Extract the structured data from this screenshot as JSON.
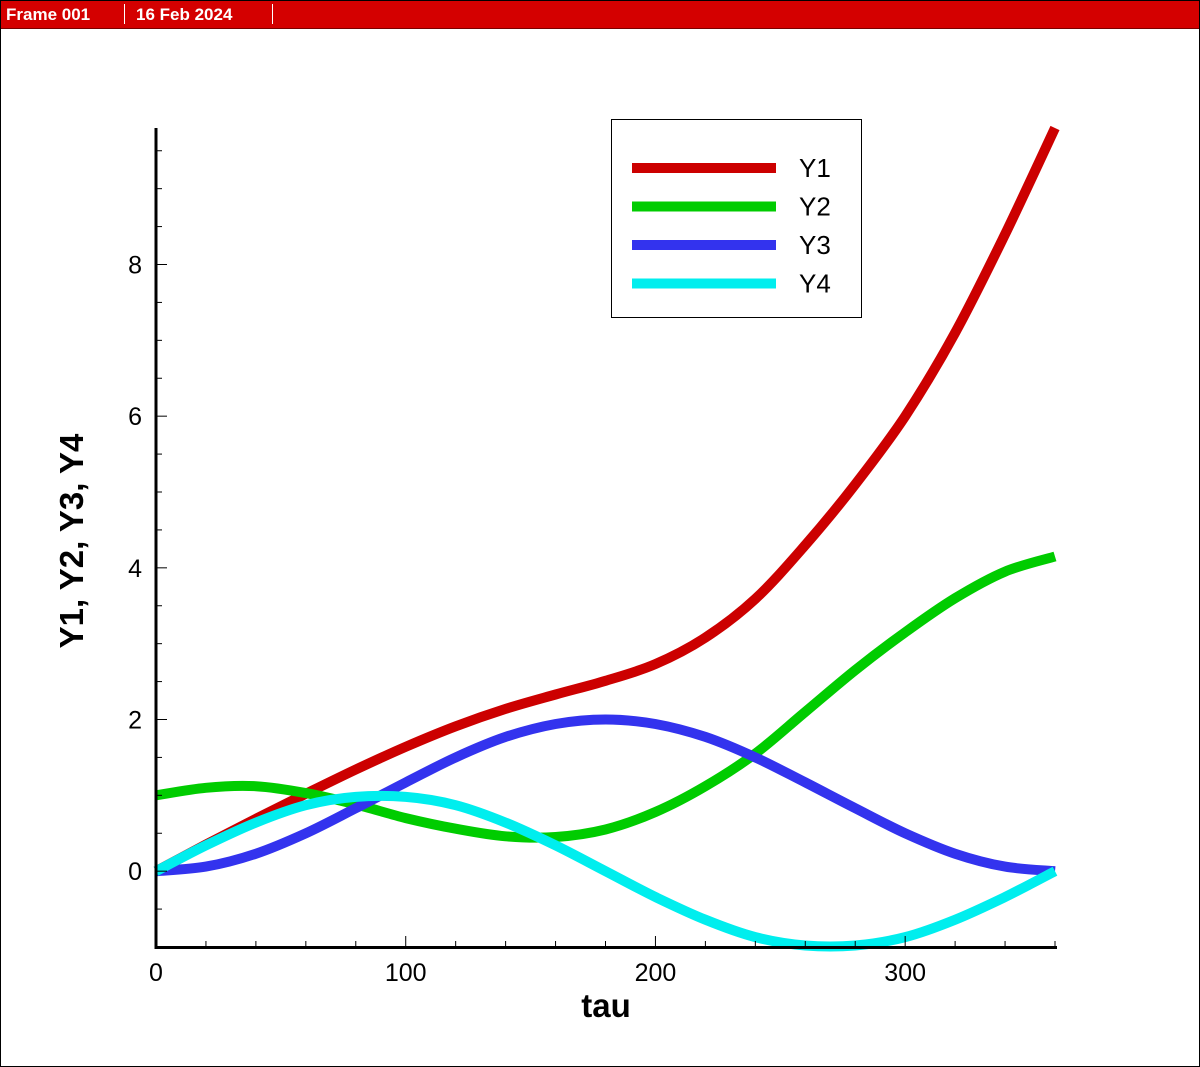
{
  "header": {
    "frame_label": "Frame 001",
    "date_label": "16 Feb 2024",
    "bar_color": "#d40000"
  },
  "chart_data": {
    "type": "line",
    "title": "",
    "xlabel": "tau",
    "ylabel": "Y1, Y2, Y3, Y4",
    "xlim": [
      0,
      360
    ],
    "ylim": [
      -1,
      9.8
    ],
    "x_ticks": [
      0,
      100,
      200,
      300
    ],
    "x_tick_labels": [
      "0",
      "100",
      "200",
      "300"
    ],
    "y_ticks": [
      0,
      2,
      4,
      6,
      8
    ],
    "y_tick_labels": [
      "0",
      "2",
      "4",
      "6",
      "8"
    ],
    "grid": false,
    "legend_position": "top-right",
    "x": [
      0,
      20,
      40,
      60,
      80,
      100,
      120,
      140,
      160,
      180,
      200,
      220,
      240,
      260,
      280,
      300,
      320,
      340,
      360
    ],
    "series": [
      {
        "name": "Y1",
        "color": "#cc0000",
        "values": [
          0,
          0.35,
          0.69,
          1.02,
          1.34,
          1.64,
          1.91,
          2.14,
          2.33,
          2.51,
          2.73,
          3.08,
          3.59,
          4.3,
          5.1,
          6.0,
          7.1,
          8.4,
          9.8
        ]
      },
      {
        "name": "Y2",
        "color": "#00cc00",
        "values": [
          1.0,
          1.1,
          1.12,
          1.03,
          0.88,
          0.7,
          0.56,
          0.46,
          0.45,
          0.55,
          0.78,
          1.12,
          1.55,
          2.1,
          2.65,
          3.15,
          3.6,
          3.95,
          4.15
        ]
      },
      {
        "name": "Y3",
        "color": "#3333ee",
        "values": [
          0,
          0.06,
          0.23,
          0.5,
          0.83,
          1.17,
          1.5,
          1.77,
          1.94,
          2.0,
          1.94,
          1.77,
          1.5,
          1.17,
          0.83,
          0.5,
          0.23,
          0.06,
          0
        ]
      },
      {
        "name": "Y4",
        "color": "#00eeee",
        "values": [
          0,
          0.34,
          0.64,
          0.87,
          0.98,
          0.98,
          0.87,
          0.64,
          0.34,
          0,
          -0.34,
          -0.64,
          -0.87,
          -0.98,
          -0.98,
          -0.87,
          -0.64,
          -0.34,
          0
        ]
      }
    ]
  }
}
